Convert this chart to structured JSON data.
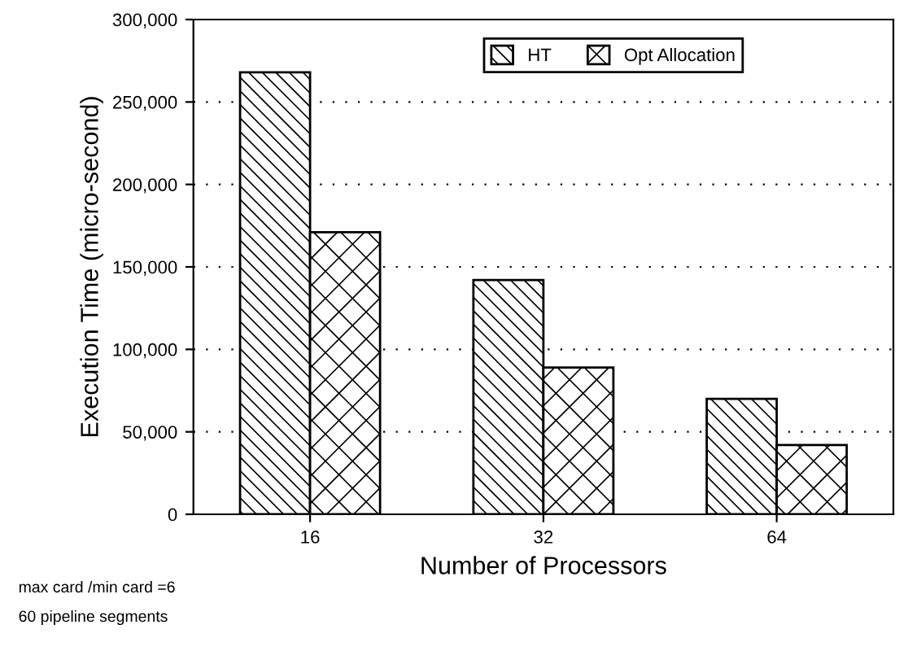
{
  "chart_data": {
    "type": "bar",
    "xlabel": "Number of Processors",
    "ylabel": "Execution Time (micro-second)",
    "categories": [
      "16",
      "32",
      "64"
    ],
    "series": [
      {
        "name": "HT",
        "color": "#000000",
        "values": [
          268000,
          142000,
          70000
        ]
      },
      {
        "name": "Opt Allocation",
        "color": "#000000",
        "values": [
          171000,
          89000,
          42000
        ]
      }
    ],
    "ylim": [
      0,
      300000
    ],
    "yticks": [
      {
        "value": 0,
        "label": "0"
      },
      {
        "value": 50000,
        "label": "50,000"
      },
      {
        "value": 100000,
        "label": "100,000"
      },
      {
        "value": 150000,
        "label": "150,000"
      },
      {
        "value": 200000,
        "label": "200,000"
      },
      {
        "value": 250000,
        "label": "250,000"
      },
      {
        "value": 300000,
        "label": "300,000"
      }
    ],
    "grid": "y",
    "legend": "top",
    "annotations": [
      "max card /min card =6",
      "60 pipeline segments"
    ]
  }
}
